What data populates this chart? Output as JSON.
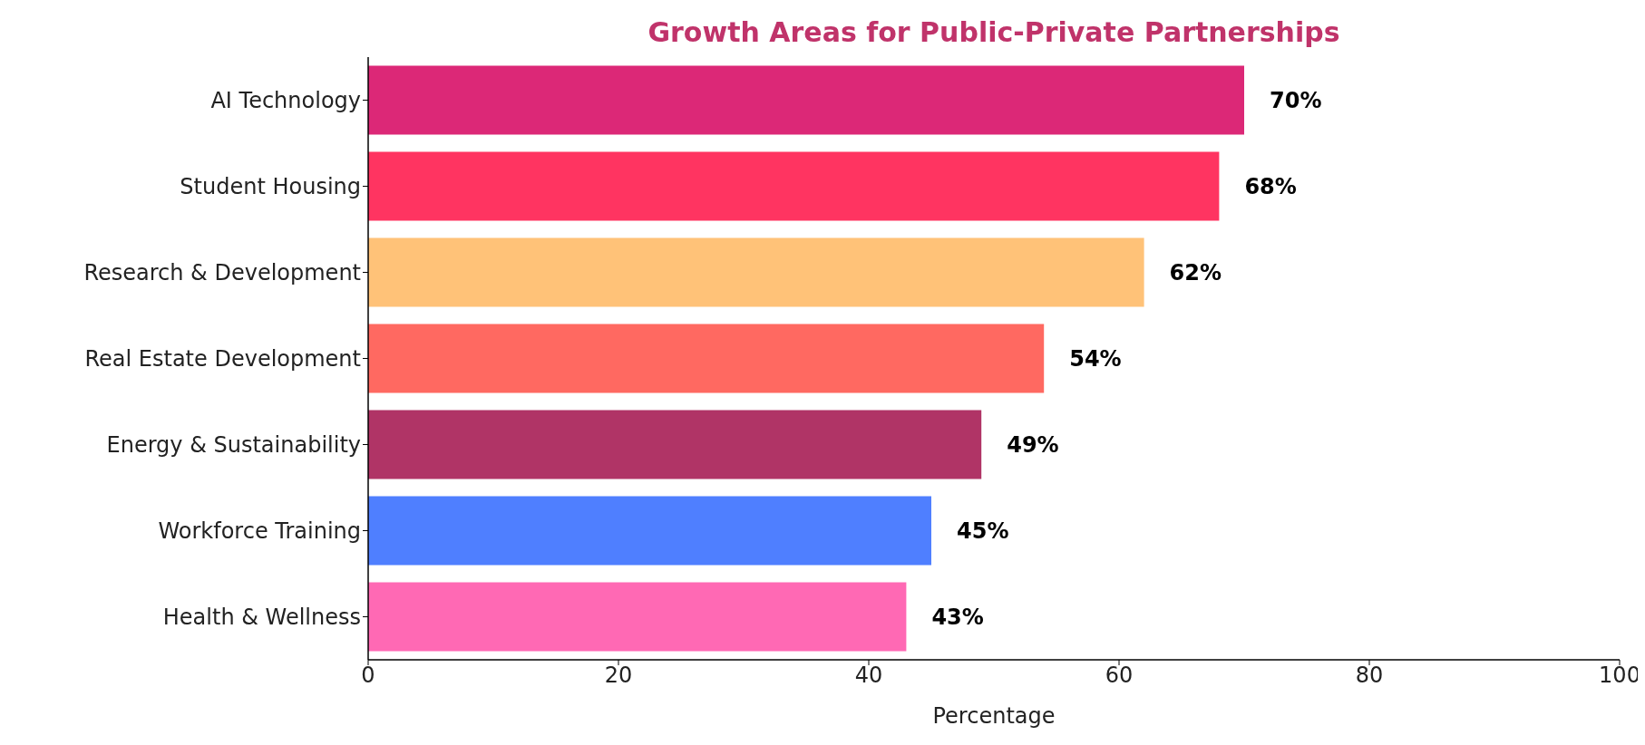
{
  "chart_data": {
    "type": "bar",
    "orientation": "horizontal",
    "title": "Growth Areas for Public-Private Partnerships",
    "xlabel": "Percentage",
    "categories": [
      "AI Technology",
      "Student Housing",
      "Research & Development",
      "Real Estate Development",
      "Energy & Sustainability",
      "Workforce Training",
      "Health & Wellness"
    ],
    "values": [
      70,
      68,
      62,
      54,
      49,
      45,
      43
    ],
    "colors": [
      "#dc2877",
      "#ff3461",
      "#ffc278",
      "#ff6961",
      "#b03466",
      "#4f7fff",
      "#ff69b4"
    ],
    "value_labels": [
      "70%",
      "68%",
      "62%",
      "54%",
      "49%",
      "45%",
      "43%"
    ],
    "xlim": [
      0,
      100
    ],
    "xticks": [
      0,
      20,
      40,
      60,
      80,
      100
    ],
    "grid": false,
    "legend": false
  }
}
